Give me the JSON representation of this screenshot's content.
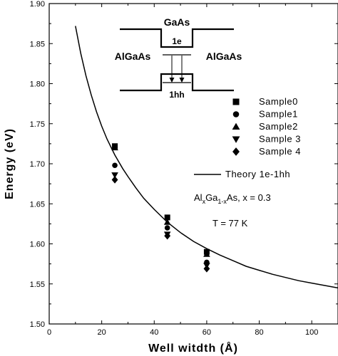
{
  "chart_data": {
    "type": "scatter",
    "xlabel": "Well witdth (Å)",
    "ylabel": "Energy (eV)",
    "xlim": [
      0,
      110
    ],
    "ylim": [
      1.5,
      1.9
    ],
    "x_ticks": [
      "0",
      "20",
      "40",
      "60",
      "80",
      "100"
    ],
    "x_tick_values": [
      0,
      20,
      40,
      60,
      80,
      100
    ],
    "y_ticks": [
      "1.50",
      "1.55",
      "1.60",
      "1.65",
      "1.70",
      "1.75",
      "1.80",
      "1.85",
      "1.90"
    ],
    "y_tick_values": [
      1.5,
      1.55,
      1.6,
      1.65,
      1.7,
      1.75,
      1.8,
      1.85,
      1.9
    ],
    "series": [
      {
        "name": "Sample0",
        "marker": "square",
        "x": [
          25,
          45,
          60
        ],
        "y": [
          1.722,
          1.633,
          1.59
        ]
      },
      {
        "name": "Sample1",
        "marker": "circle",
        "x": [
          25,
          45,
          60
        ],
        "y": [
          1.698,
          1.62,
          1.577
        ]
      },
      {
        "name": "Sample2",
        "marker": "triangle-up",
        "x": [
          25,
          45,
          60
        ],
        "y": [
          1.72,
          1.627,
          1.587
        ]
      },
      {
        "name": "Sample 3",
        "marker": "triangle-down",
        "x": [
          25,
          45,
          60
        ],
        "y": [
          1.686,
          1.612,
          1.573
        ]
      },
      {
        "name": "Sample 4",
        "marker": "diamond",
        "x": [
          25,
          45,
          60
        ],
        "y": [
          1.68,
          1.61,
          1.569
        ]
      }
    ],
    "theory": {
      "name": "Theory 1e-1hh",
      "x": [
        10,
        12,
        14,
        16,
        18,
        20,
        22,
        25,
        28,
        30,
        33,
        36,
        40,
        45,
        50,
        55,
        60,
        65,
        70,
        75,
        80,
        85,
        90,
        95,
        100,
        105,
        110
      ],
      "y": [
        1.872,
        1.838,
        1.81,
        1.786,
        1.765,
        1.747,
        1.731,
        1.711,
        1.694,
        1.684,
        1.67,
        1.657,
        1.643,
        1.627,
        1.614,
        1.603,
        1.594,
        1.586,
        1.579,
        1.572,
        1.567,
        1.562,
        1.558,
        1.554,
        1.551,
        1.548,
        1.545
      ]
    },
    "annotations": {
      "alloy_prefix": "Al",
      "alloy_sub1": "x",
      "alloy_mid": "Ga",
      "alloy_sub2": "1-x",
      "alloy_suffix": "As, x = 0.3",
      "temperature": "T = 77 K"
    },
    "inset": {
      "well_label": "GaAs",
      "left_barrier": "AlGaAs",
      "right_barrier": "AlGaAs",
      "electron_level": "1e",
      "hole_level": "1hh"
    },
    "grid": false,
    "legend_position": "right"
  }
}
